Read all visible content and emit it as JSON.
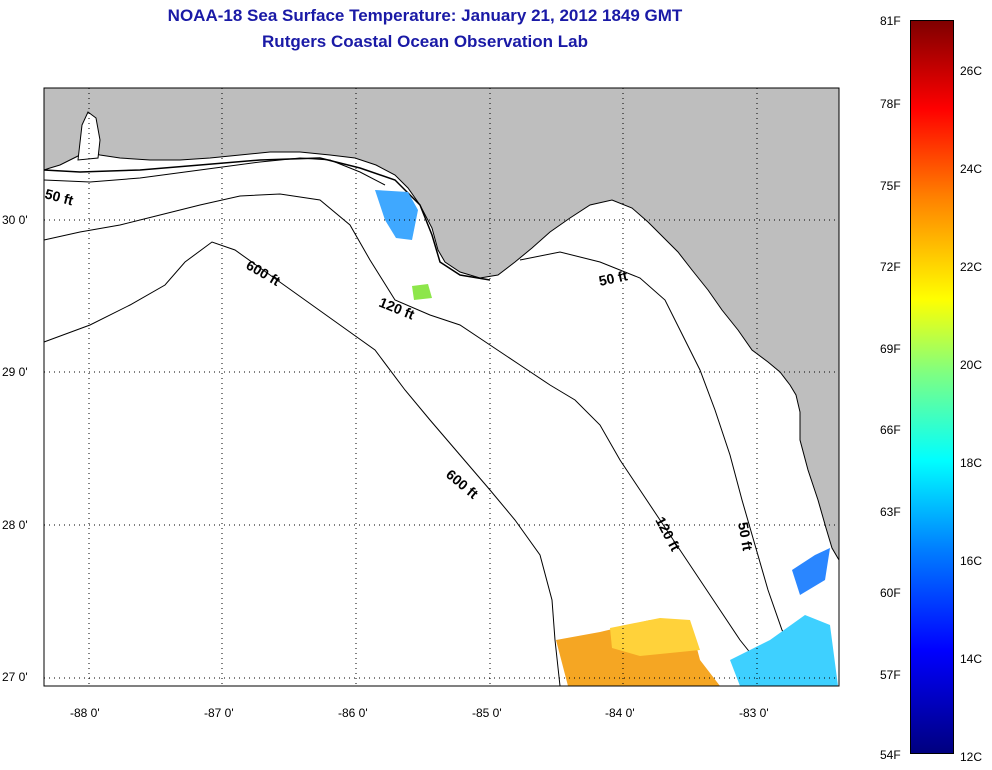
{
  "title": {
    "line1": "NOAA-18 Sea Surface Temperature:  January 21, 2012 1849 GMT",
    "line2": "Rutgers Coastal Ocean Observation Lab"
  },
  "map": {
    "lat_labels": [
      "30 0'",
      "29 0'",
      "28 0'",
      "27 0'"
    ],
    "lon_labels": [
      "-88 0'",
      "-87 0'",
      "-86 0'",
      "-85 0'",
      "-84 0'",
      "-83 0'"
    ],
    "contour_labels": {
      "c50_west": "50 ft",
      "c600_north": "600 ft",
      "c120_north": "120 ft",
      "c50_east": "50 ft",
      "c600_south": "600 ft",
      "c120_south": "120 ft",
      "c50_south": "50 ft"
    },
    "colors": {
      "land": "#bebebe",
      "water": "#ffffff"
    }
  },
  "colorbar": {
    "fahrenheit": [
      "81F",
      "78F",
      "75F",
      "72F",
      "69F",
      "66F",
      "63F",
      "60F",
      "57F",
      "54F"
    ],
    "celsius": [
      "26C",
      "24C",
      "22C",
      "20C",
      "18C",
      "16C",
      "14C",
      "12C"
    ]
  }
}
